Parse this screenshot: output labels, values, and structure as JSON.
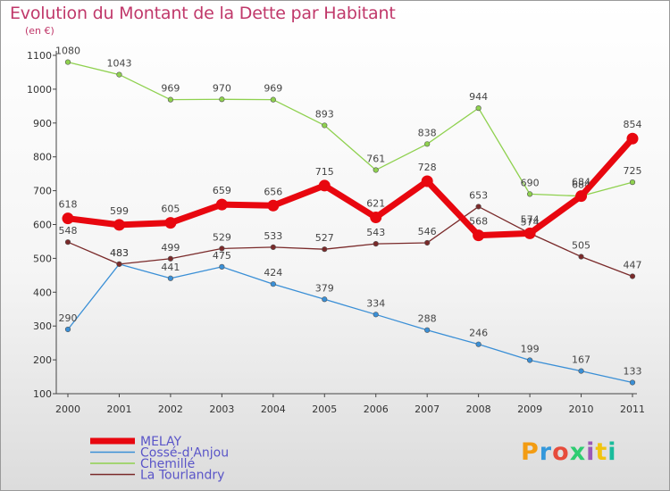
{
  "title": "Evolution du Montant de la Dette par Habitant",
  "unit": "(en €)",
  "logo": {
    "text": "Proxiti",
    "colors": [
      "#f39c12",
      "#3498db",
      "#e74c3c",
      "#2ecc71",
      "#9b59b6",
      "#f1c40f",
      "#1abc9c"
    ]
  },
  "chart_data": {
    "type": "line",
    "title": "Evolution du Montant de la Dette par Habitant",
    "ylabel": "(en €)",
    "xlabel": "",
    "x": [
      "2000",
      "2001",
      "2002",
      "2003",
      "2004",
      "2005",
      "2006",
      "2007",
      "2008",
      "2009",
      "2010",
      "2011"
    ],
    "ylim": [
      100,
      1100
    ],
    "yticks": [
      100,
      200,
      300,
      400,
      500,
      600,
      700,
      800,
      900,
      1000,
      1100
    ],
    "grid": false,
    "legend": "bottom-left",
    "series": [
      {
        "name": "Chemillé",
        "color": "#8fd14f",
        "width": 1.3,
        "marker": 2.8,
        "values": [
          1080,
          1043,
          969,
          970,
          969,
          893,
          761,
          838,
          944,
          690,
          684,
          725
        ]
      },
      {
        "name": "Cossé-d'Anjou",
        "color": "#3a8fd6",
        "width": 1.3,
        "marker": 2.8,
        "values": [
          290,
          483,
          441,
          475,
          424,
          379,
          334,
          288,
          246,
          199,
          167,
          133
        ]
      },
      {
        "name": "La Tourlandry",
        "color": "#7a2a2a",
        "width": 1.3,
        "marker": 2.8,
        "values": [
          548,
          483,
          499,
          529,
          533,
          527,
          543,
          546,
          653,
          574,
          505,
          447
        ]
      },
      {
        "name": "MELAY",
        "color": "#e8070f",
        "width": 7,
        "marker": 6.5,
        "values": [
          618,
          599,
          605,
          659,
          656,
          715,
          621,
          728,
          568,
          574,
          684,
          854
        ]
      }
    ],
    "legend_order": [
      "MELAY",
      "Cossé-d'Anjou",
      "Chemillé",
      "La Tourlandry"
    ]
  }
}
